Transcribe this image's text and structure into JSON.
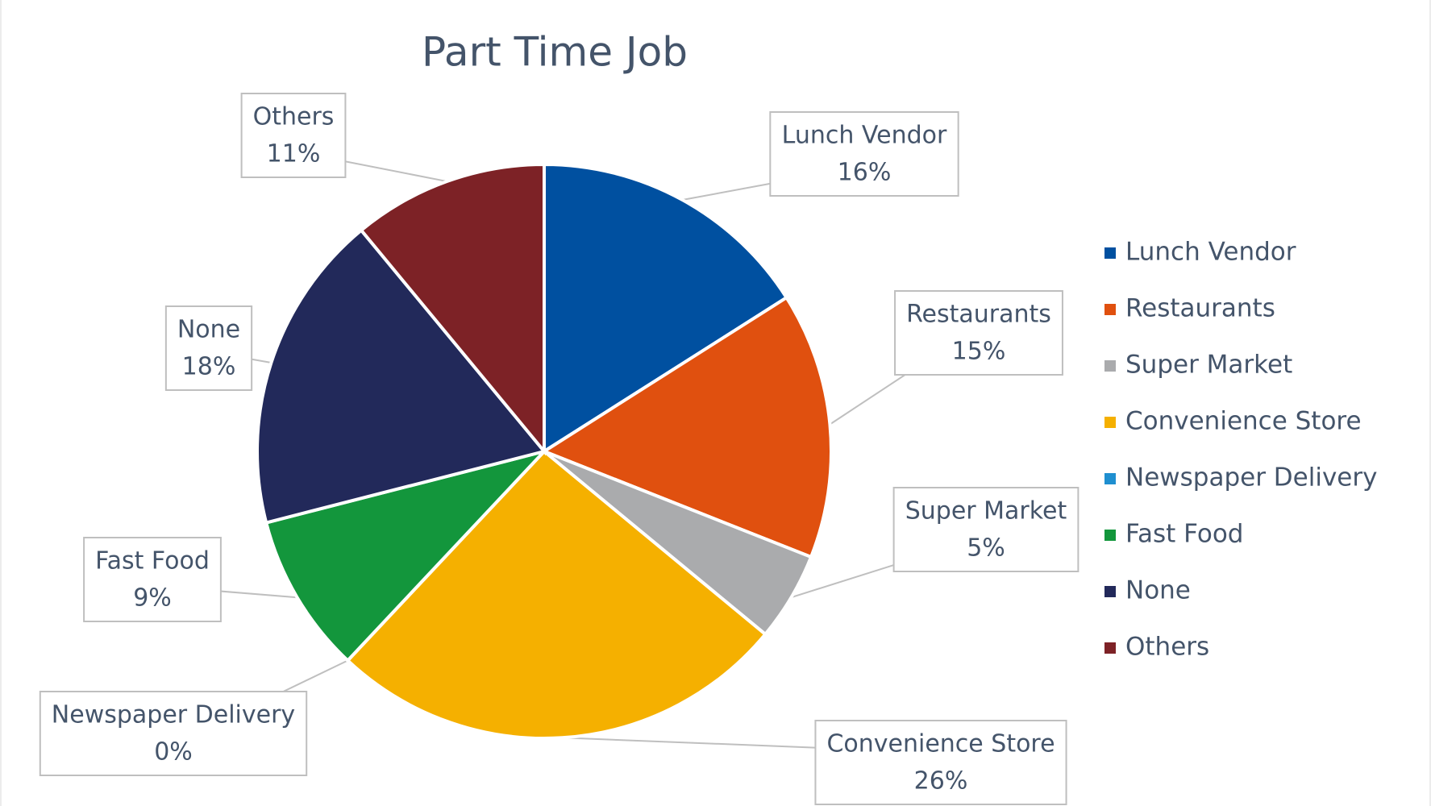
{
  "chart_data": {
    "type": "pie",
    "title": "Part Time Job",
    "categories": [
      "Lunch Vendor",
      "Restaurants",
      "Super Market",
      "Convenience Store",
      "Newspaper Delivery",
      "Fast Food",
      "None",
      "Others"
    ],
    "values": [
      16,
      15,
      5,
      26,
      0,
      9,
      18,
      11
    ],
    "value_labels": [
      "16%",
      "15%",
      "5%",
      "26%",
      "0%",
      "9%",
      "18%",
      "11%"
    ],
    "colors": [
      "#0050a0",
      "#e0500f",
      "#aaabad",
      "#f5b000",
      "#1f8fd0",
      "#13963c",
      "#22295a",
      "#7d2226"
    ],
    "legend": "right"
  }
}
